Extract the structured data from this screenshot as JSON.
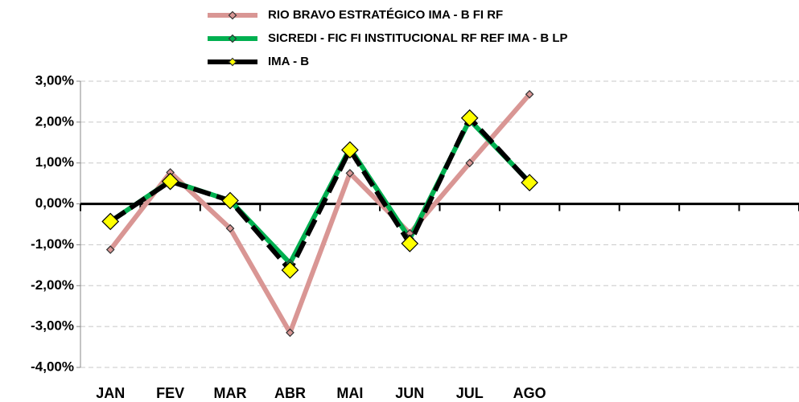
{
  "chart_data": {
    "type": "line",
    "categories": [
      "JAN",
      "FEV",
      "MAR",
      "ABR",
      "MAI",
      "JUN",
      "JUL",
      "AGO",
      null,
      null,
      null,
      null
    ],
    "series": [
      {
        "name": "RIO BRAVO ESTRATÉGICO IMA - B FI RF",
        "color": "#d99694",
        "marker_color": "#d99694",
        "values": [
          -1.12,
          0.77,
          -0.6,
          -3.15,
          0.75,
          -0.72,
          1.0,
          2.68,
          null,
          null,
          null,
          null
        ]
      },
      {
        "name": "SICREDI - FIC FI INSTITUCIONAL RF REF IMA - B LP",
        "color": "#00b050",
        "marker_color": "#00b050",
        "values": [
          -0.43,
          0.56,
          0.08,
          -1.45,
          1.36,
          -0.85,
          2.05,
          0.53,
          null,
          null,
          null,
          null
        ]
      },
      {
        "name": "IMA - B",
        "color": "#000000",
        "marker_color": "#ffff00",
        "values": [
          -0.43,
          0.55,
          0.08,
          -1.62,
          1.32,
          -0.97,
          2.1,
          0.52,
          null,
          null,
          null,
          null
        ]
      }
    ],
    "ylim": [
      -4,
      3
    ],
    "yticks": [
      {
        "value": -4,
        "label": "-4,00%"
      },
      {
        "value": -3,
        "label": "-3,00%"
      },
      {
        "value": -2,
        "label": "-2,00%"
      },
      {
        "value": -1,
        "label": "-1,00%"
      },
      {
        "value": 0,
        "label": "0,00%"
      },
      {
        "value": 1,
        "label": "1,00%"
      },
      {
        "value": 2,
        "label": "2,00%"
      },
      {
        "value": 3,
        "label": "3,00%"
      }
    ],
    "grid": true
  }
}
